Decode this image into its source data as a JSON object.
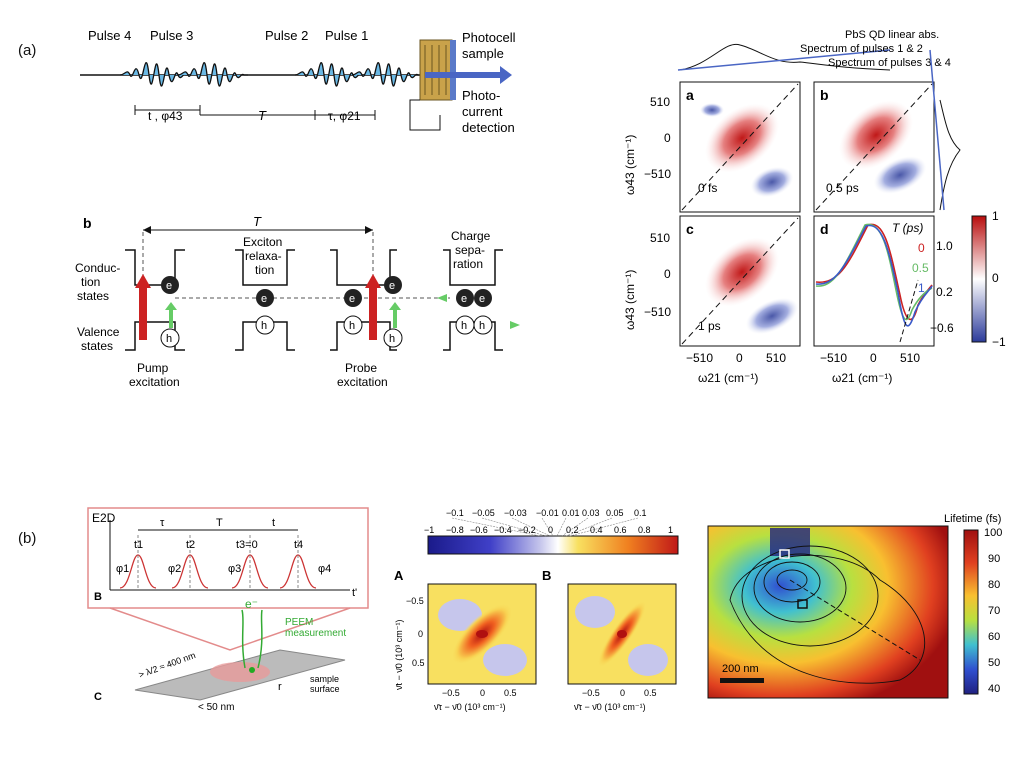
{
  "part_labels": {
    "a": "(a)",
    "b": "(b)"
  },
  "pulse_panel": {
    "pulse4": "Pulse 4",
    "pulse3": "Pulse 3",
    "pulse2": "Pulse 2",
    "pulse1": "Pulse 1",
    "t_label": "t , φ43",
    "T_label": "T",
    "tau_label": "τ, φ21",
    "sample_label": "Photocell sample",
    "detection_label": "Photo-current detection",
    "photocell": "Photocell",
    "sample": "sample",
    "photo": "Photo-",
    "current": "current",
    "detection": "detection"
  },
  "level_panel": {
    "letter": "b",
    "T_label": "T",
    "conduction": [
      "Conduc-",
      "tion",
      "states"
    ],
    "valence": [
      "Valence",
      "states"
    ],
    "exciton": [
      "Exciton",
      "relaxa-",
      "tion"
    ],
    "charge": [
      "Charge",
      "sepa-",
      "ration"
    ],
    "pump": [
      "Pump",
      "excitation"
    ],
    "probe": [
      "Probe",
      "excitation"
    ],
    "e": "e",
    "h": "h"
  },
  "twod_panel": {
    "legend1": "PbS QD linear abs.",
    "legend2": "Spectrum of pulses 1 & 2",
    "legend3": "Spectrum of pulses 3 & 4",
    "letters": [
      "a",
      "b",
      "c",
      "d"
    ],
    "times": [
      "0 fs",
      "0.5 ps",
      "1 ps"
    ],
    "y_ticks": [
      "510",
      "0",
      "−510"
    ],
    "x_ticks": [
      "−510",
      "0",
      "510"
    ],
    "ylabel": "ω43 (cm⁻¹)",
    "xlabel": "ω21 (cm⁻¹)",
    "d_title": "T (ps)",
    "d_legend": [
      "0",
      "0.5",
      "1"
    ],
    "d_yticks": [
      "1.0",
      "0.2",
      "−0.6"
    ],
    "cbar_ticks": [
      "1",
      "0",
      "−1"
    ]
  },
  "peem_panel": {
    "E2D": "E2D",
    "B": "B",
    "C": "C",
    "tau": "τ",
    "T": "T",
    "t": "t",
    "t1": "t1",
    "t2": "t2",
    "t3": "t3=0",
    "t4": "t4",
    "phi1": "φ1",
    "phi2": "φ2",
    "phi3": "φ3",
    "phi4": "φ4",
    "tprime": "t'",
    "electron": "e⁻",
    "peem": "PEEM",
    "measurement": "measurement",
    "lambda": "> λ/2 ≈ 400 nm",
    "fifty": "< 50 nm",
    "r": "r",
    "sample": "sample",
    "surface": "surface"
  },
  "colormap_panel": {
    "top_ticks": [
      "−0.1",
      "−0.05",
      "−0.03",
      "−0.01",
      "0.01",
      "0.03",
      "0.05",
      "0.1"
    ],
    "bottom_ticks": [
      "−1",
      "−0.8",
      "−0.6",
      "−0.4",
      "−0.2",
      "0",
      "0.2",
      "0.4",
      "0.6",
      "0.8",
      "1"
    ],
    "A": "A",
    "B": "B",
    "y_ticks": [
      "−0.5",
      "0",
      "0.5"
    ],
    "x_ticks": [
      "−0.5",
      "0",
      "0.5"
    ],
    "ylabel": "ν̄t − ν̄0 (10³ cm⁻¹)",
    "xlabel": "ν̄τ − ν̄0 (10³ cm⁻¹)"
  },
  "lifetime_panel": {
    "title": "Lifetime (fs)",
    "ticks": [
      "100",
      "90",
      "80",
      "70",
      "60",
      "50",
      "40"
    ],
    "scalebar": "200 nm"
  }
}
